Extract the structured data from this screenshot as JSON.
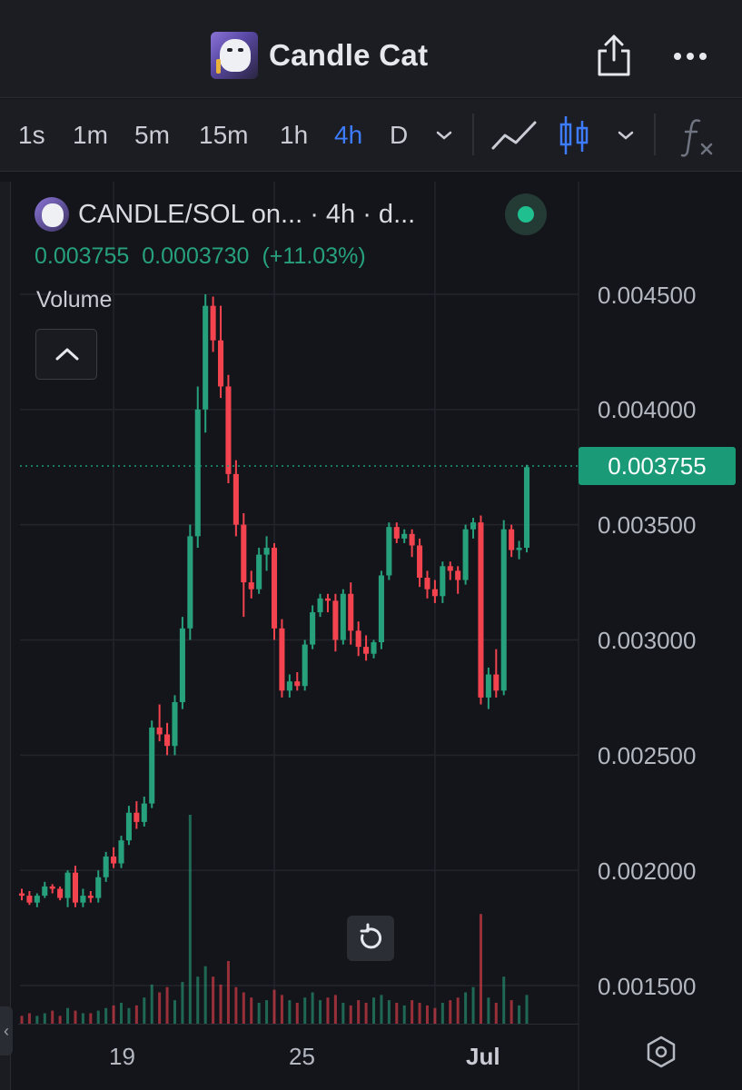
{
  "header": {
    "title": "Candle Cat",
    "share_icon": "share-icon",
    "more_icon": "more-icon"
  },
  "toolbar": {
    "timeframes": [
      "1s",
      "1m",
      "5m",
      "15m",
      "1h",
      "4h",
      "D"
    ],
    "active_timeframe": "4h",
    "icons": [
      "chevron-down-icon",
      "line-chart-icon",
      "candlestick-icon",
      "chevron-down-icon",
      "function-icon"
    ]
  },
  "legend": {
    "title": "CANDLE/SOL on... · 4h · d...",
    "close": "0.003755",
    "change": "0.0003730",
    "change_pct": "(+11.03%)",
    "volume_label": "Volume"
  },
  "colors": {
    "up": "#26a17b",
    "down": "#f2434f",
    "accent": "#3d7bff",
    "price_tag": "#1a9a77"
  },
  "chart_data": {
    "type": "candlestick",
    "symbol": "CANDLE/SOL",
    "interval": "4h",
    "last_price": "0.003755",
    "y_ticks": [
      "0.004500",
      "0.004000",
      "0.003500",
      "0.003000",
      "0.002500",
      "0.002000",
      "0.001500"
    ],
    "ylim": [
      0.00134,
      0.00475
    ],
    "x_ticks": [
      {
        "label": "19",
        "index": 12
      },
      {
        "label": "25",
        "index": 33
      },
      {
        "label": "Jul",
        "index": 54
      }
    ],
    "candles": [
      [
        0.0019,
        0.00192,
        0.00187,
        0.00189
      ],
      [
        0.00189,
        0.00191,
        0.00185,
        0.00186
      ],
      [
        0.00186,
        0.0019,
        0.00184,
        0.00189
      ],
      [
        0.00189,
        0.00195,
        0.00188,
        0.00193
      ],
      [
        0.00193,
        0.00194,
        0.0019,
        0.00192
      ],
      [
        0.00192,
        0.00193,
        0.00187,
        0.00188
      ],
      [
        0.00188,
        0.002,
        0.00184,
        0.00199
      ],
      [
        0.00199,
        0.00202,
        0.00184,
        0.00186
      ],
      [
        0.00186,
        0.00192,
        0.00184,
        0.00189
      ],
      [
        0.00189,
        0.00191,
        0.00186,
        0.00188
      ],
      [
        0.00188,
        0.002,
        0.00186,
        0.00197
      ],
      [
        0.00197,
        0.00208,
        0.00195,
        0.00206
      ],
      [
        0.00206,
        0.0021,
        0.00201,
        0.00203
      ],
      [
        0.00203,
        0.00215,
        0.00201,
        0.00213
      ],
      [
        0.00213,
        0.00228,
        0.00211,
        0.00225
      ],
      [
        0.00225,
        0.0023,
        0.00218,
        0.00221
      ],
      [
        0.00221,
        0.00232,
        0.00219,
        0.00229
      ],
      [
        0.00229,
        0.00265,
        0.00227,
        0.00262
      ],
      [
        0.00262,
        0.00272,
        0.00256,
        0.00259
      ],
      [
        0.00259,
        0.00264,
        0.0025,
        0.00254
      ],
      [
        0.00254,
        0.00276,
        0.0025,
        0.00273
      ],
      [
        0.00273,
        0.0031,
        0.0027,
        0.00305
      ],
      [
        0.00305,
        0.0035,
        0.003,
        0.00345
      ],
      [
        0.00345,
        0.0041,
        0.0034,
        0.004
      ],
      [
        0.004,
        0.0045,
        0.0039,
        0.00445
      ],
      [
        0.00445,
        0.00449,
        0.00425,
        0.0043
      ],
      [
        0.0043,
        0.00445,
        0.00405,
        0.0041
      ],
      [
        0.0041,
        0.00415,
        0.00368,
        0.00372
      ],
      [
        0.00372,
        0.00378,
        0.00345,
        0.0035
      ],
      [
        0.0035,
        0.00355,
        0.0031,
        0.00325
      ],
      [
        0.00325,
        0.0033,
        0.00318,
        0.00322
      ],
      [
        0.00322,
        0.0034,
        0.0032,
        0.00337
      ],
      [
        0.00337,
        0.00345,
        0.0033,
        0.0034
      ],
      [
        0.0034,
        0.00342,
        0.003,
        0.00305
      ],
      [
        0.00305,
        0.00309,
        0.00275,
        0.00278
      ],
      [
        0.00278,
        0.00285,
        0.00275,
        0.00282
      ],
      [
        0.00282,
        0.00286,
        0.00278,
        0.0028
      ],
      [
        0.0028,
        0.003,
        0.00278,
        0.00298
      ],
      [
        0.00298,
        0.00315,
        0.00296,
        0.00312
      ],
      [
        0.00312,
        0.0032,
        0.0031,
        0.00318
      ],
      [
        0.00318,
        0.0032,
        0.00312,
        0.00317
      ],
      [
        0.00317,
        0.0032,
        0.00295,
        0.003
      ],
      [
        0.003,
        0.00322,
        0.00298,
        0.0032
      ],
      [
        0.0032,
        0.00325,
        0.00298,
        0.00304
      ],
      [
        0.00304,
        0.00308,
        0.00293,
        0.00297
      ],
      [
        0.00297,
        0.00302,
        0.00291,
        0.00294
      ],
      [
        0.00294,
        0.003,
        0.00292,
        0.00299
      ],
      [
        0.00299,
        0.0033,
        0.00296,
        0.00328
      ],
      [
        0.00328,
        0.00351,
        0.00326,
        0.00349
      ],
      [
        0.00349,
        0.00351,
        0.00342,
        0.00344
      ],
      [
        0.00344,
        0.00348,
        0.00342,
        0.00346
      ],
      [
        0.00346,
        0.00348,
        0.00336,
        0.00341
      ],
      [
        0.00341,
        0.00344,
        0.00323,
        0.00327
      ],
      [
        0.00327,
        0.0033,
        0.00318,
        0.00322
      ],
      [
        0.00322,
        0.00326,
        0.00316,
        0.00319
      ],
      [
        0.00319,
        0.00334,
        0.00316,
        0.00332
      ],
      [
        0.00332,
        0.00334,
        0.00326,
        0.0033
      ],
      [
        0.0033,
        0.00332,
        0.0032,
        0.00326
      ],
      [
        0.00326,
        0.0035,
        0.00324,
        0.00348
      ],
      [
        0.00348,
        0.00353,
        0.00344,
        0.00351
      ],
      [
        0.00351,
        0.00354,
        0.00272,
        0.00275
      ],
      [
        0.00275,
        0.00288,
        0.0027,
        0.00285
      ],
      [
        0.00285,
        0.00296,
        0.00275,
        0.00278
      ],
      [
        0.00278,
        0.00352,
        0.00276,
        0.00348
      ],
      [
        0.00348,
        0.0035,
        0.00336,
        0.00339
      ],
      [
        0.00339,
        0.00343,
        0.00335,
        0.0034
      ],
      [
        0.0034,
        0.00376,
        0.00338,
        0.00375
      ]
    ],
    "volumes": [
      0.3,
      0.4,
      0.3,
      0.4,
      0.5,
      0.3,
      0.6,
      0.5,
      0.4,
      0.4,
      0.5,
      0.6,
      0.7,
      0.8,
      0.6,
      0.7,
      1.0,
      1.5,
      1.2,
      1.4,
      0.9,
      1.6,
      8.0,
      1.8,
      2.2,
      1.8,
      1.5,
      2.4,
      1.4,
      1.2,
      1.0,
      0.8,
      0.9,
      1.3,
      1.1,
      0.9,
      0.8,
      1.0,
      1.2,
      0.9,
      1.0,
      1.1,
      0.8,
      0.7,
      0.9,
      0.8,
      1.0,
      1.1,
      0.9,
      0.8,
      0.7,
      0.9,
      0.8,
      0.7,
      0.6,
      0.8,
      0.9,
      1.0,
      1.2,
      1.4,
      4.2,
      1.0,
      0.8,
      1.8,
      0.9,
      0.7,
      1.1
    ]
  },
  "x_axis_labels": [
    "19",
    "25",
    "Jul"
  ]
}
